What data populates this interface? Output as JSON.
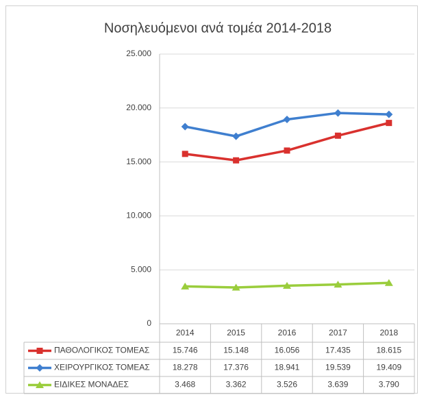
{
  "chart_data": {
    "type": "line",
    "title": "Νοσηλευόμενοι ανά τομέα 2014-2018",
    "categories": [
      "2014",
      "2015",
      "2016",
      "2017",
      "2018"
    ],
    "series": [
      {
        "name": "ΠΑΘΟΛΟΓΙΚΟΣ ΤΟΜΕΑΣ",
        "color": "#d9312e",
        "marker": "square",
        "values": [
          15746,
          15148,
          16056,
          17435,
          18615
        ],
        "value_labels": [
          "15.746",
          "15.148",
          "16.056",
          "17.435",
          "18.615"
        ]
      },
      {
        "name": "ΧΕΙΡΟΥΡΓΙΚΟΣ ΤΟΜΕΑΣ",
        "color": "#3f7fcf",
        "marker": "diamond",
        "values": [
          18278,
          17376,
          18941,
          19539,
          19409
        ],
        "value_labels": [
          "18.278",
          "17.376",
          "18.941",
          "19.539",
          "19.409"
        ]
      },
      {
        "name": "ΕΙΔΙΚΕΣ ΜΟΝΑΔΕΣ",
        "color": "#9acd3c",
        "marker": "triangle",
        "values": [
          3468,
          3362,
          3526,
          3639,
          3790
        ],
        "value_labels": [
          "3.468",
          "3.362",
          "3.526",
          "3.639",
          "3.790"
        ]
      }
    ],
    "ylim": [
      0,
      25000
    ],
    "yticks": [
      0,
      {
        "value": 5000,
        "label": "5.000"
      },
      {
        "value": 10000,
        "label": "10.000"
      },
      {
        "value": 15000,
        "label": "15.000"
      },
      {
        "value": 20000,
        "label": "20.000"
      },
      {
        "value": 25000,
        "label": "25.000"
      }
    ],
    "grid": true
  }
}
